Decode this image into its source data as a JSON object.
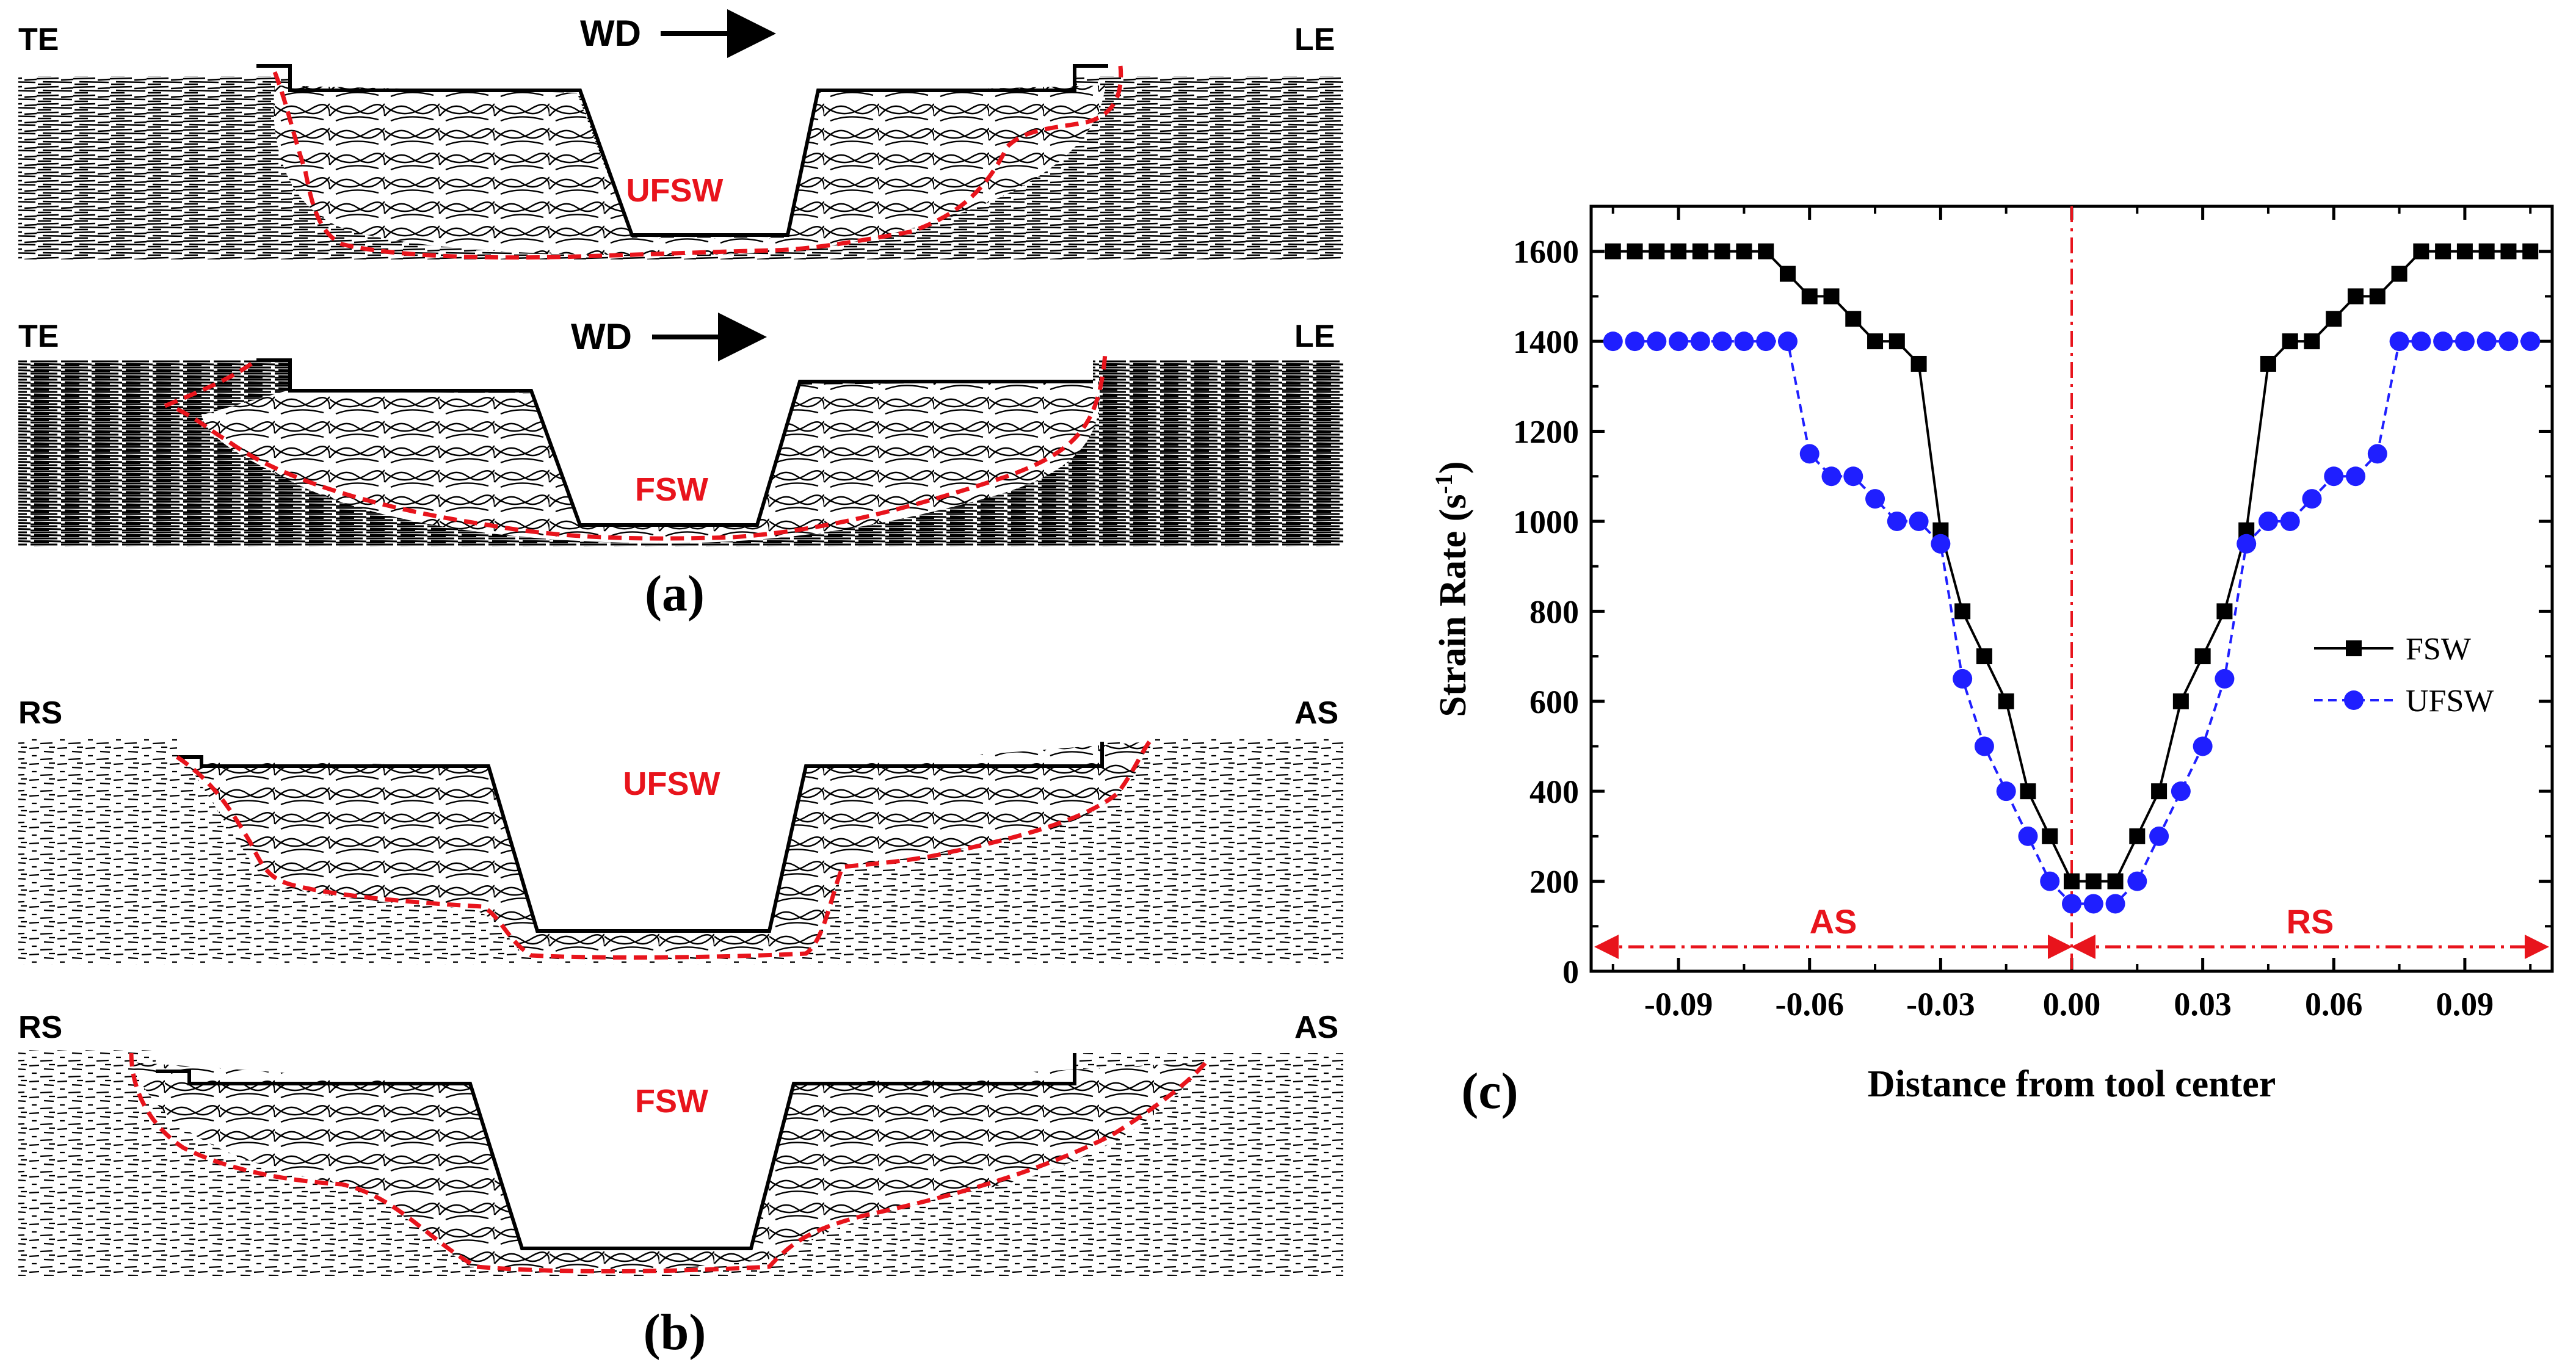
{
  "panel_a": {
    "caption": "(a)",
    "top": {
      "left_label": "TE",
      "center_label": "WD",
      "right_label": "LE",
      "weld_label": "UFSW"
    },
    "bottom": {
      "left_label": "TE",
      "center_label": "WD",
      "right_label": "LE",
      "weld_label": "FSW"
    }
  },
  "panel_b": {
    "caption": "(b)",
    "top": {
      "left_label": "RS",
      "right_label": "AS",
      "weld_label": "UFSW"
    },
    "bottom": {
      "left_label": "RS",
      "right_label": "AS",
      "weld_label": "FSW"
    }
  },
  "panel_c": {
    "caption": "(c)"
  },
  "colors": {
    "fsw": "#000000",
    "ufsw": "#1f1fff",
    "red": "#e8141c",
    "flow": "#000000"
  },
  "chart_data": {
    "type": "line",
    "xlabel": "Distance from tool center",
    "ylabel": "Strain Rate (s",
    "ylabel_sup": "-1",
    "ylabel_close": ")",
    "xlim": [
      -0.11,
      0.11
    ],
    "ylim": [
      0,
      1700
    ],
    "xticks": [
      -0.09,
      -0.06,
      -0.03,
      0.0,
      0.03,
      0.06,
      0.09
    ],
    "xtick_labels": [
      "-0.09",
      "-0.06",
      "-0.03",
      "0.00",
      "0.03",
      "0.06",
      "0.09"
    ],
    "yticks": [
      0,
      200,
      400,
      600,
      800,
      1000,
      1200,
      1400,
      1600
    ],
    "ytick_labels": [
      "0",
      "200",
      "400",
      "600",
      "800",
      "1000",
      "1200",
      "1400",
      "1600"
    ],
    "legend_position": "right",
    "regions": [
      {
        "label": "AS",
        "from": -0.11,
        "to": 0.0
      },
      {
        "label": "RS",
        "from": 0.0,
        "to": 0.11
      }
    ],
    "series": [
      {
        "name": "FSW",
        "style": "solid",
        "marker": "square",
        "x": [
          -0.105,
          -0.1,
          -0.095,
          -0.09,
          -0.085,
          -0.08,
          -0.075,
          -0.07,
          -0.065,
          -0.06,
          -0.055,
          -0.05,
          -0.045,
          -0.04,
          -0.035,
          -0.03,
          -0.025,
          -0.02,
          -0.015,
          -0.01,
          -0.005,
          0.0,
          0.005,
          0.01,
          0.015,
          0.02,
          0.025,
          0.03,
          0.035,
          0.04,
          0.045,
          0.05,
          0.055,
          0.06,
          0.065,
          0.07,
          0.075,
          0.08,
          0.085,
          0.09,
          0.095,
          0.1,
          0.105
        ],
        "values": [
          1600,
          1600,
          1600,
          1600,
          1600,
          1600,
          1600,
          1600,
          1550,
          1500,
          1500,
          1450,
          1400,
          1400,
          1350,
          980,
          800,
          700,
          600,
          400,
          300,
          200,
          200,
          200,
          300,
          400,
          600,
          700,
          800,
          980,
          1350,
          1400,
          1400,
          1450,
          1500,
          1500,
          1550,
          1600,
          1600,
          1600,
          1600,
          1600,
          1600
        ]
      },
      {
        "name": "UFSW",
        "style": "dashed",
        "marker": "circle",
        "x": [
          -0.105,
          -0.1,
          -0.095,
          -0.09,
          -0.085,
          -0.08,
          -0.075,
          -0.07,
          -0.065,
          -0.06,
          -0.055,
          -0.05,
          -0.045,
          -0.04,
          -0.035,
          -0.03,
          -0.025,
          -0.02,
          -0.015,
          -0.01,
          -0.005,
          0.0,
          0.005,
          0.01,
          0.015,
          0.02,
          0.025,
          0.03,
          0.035,
          0.04,
          0.045,
          0.05,
          0.055,
          0.06,
          0.065,
          0.07,
          0.075,
          0.08,
          0.085,
          0.09,
          0.095,
          0.1,
          0.105
        ],
        "values": [
          1400,
          1400,
          1400,
          1400,
          1400,
          1400,
          1400,
          1400,
          1400,
          1150,
          1100,
          1100,
          1050,
          1000,
          1000,
          950,
          650,
          500,
          400,
          300,
          200,
          150,
          150,
          150,
          200,
          300,
          400,
          500,
          650,
          950,
          1000,
          1000,
          1050,
          1100,
          1100,
          1150,
          1400,
          1400,
          1400,
          1400,
          1400,
          1400,
          1400
        ]
      }
    ]
  }
}
